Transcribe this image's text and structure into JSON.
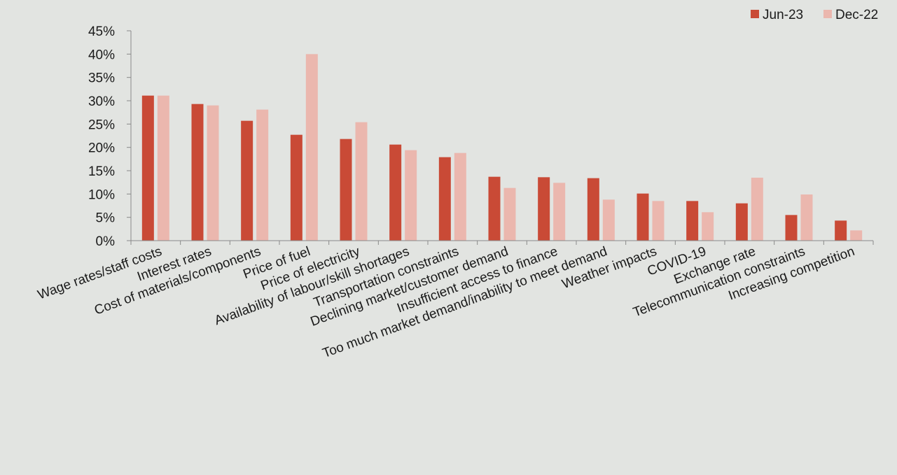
{
  "chart_data": {
    "type": "bar",
    "title": "",
    "xlabel": "",
    "ylabel": "",
    "ylim": [
      0,
      0.45
    ],
    "y_ticks": [
      "0%",
      "5%",
      "10%",
      "15%",
      "20%",
      "25%",
      "30%",
      "35%",
      "40%",
      "45%"
    ],
    "grid": false,
    "legend_position": "top-right",
    "categories": [
      "Wage rates/staff costs",
      "Interest rates",
      "Cost of materials/components",
      "Price of fuel",
      "Price of electricity",
      "Availability of labour/skill shortages",
      "Transportation constraints",
      "Declining market/customer demand",
      "Insufficient access to finance",
      "Too much market demand/inability to meet demand",
      "Weather impacts",
      "COVID-19",
      "Exchange rate",
      "Telecommunication constraints",
      "Increasing competition"
    ],
    "series": [
      {
        "name": "Jun-23",
        "color": "#c94a36",
        "values": [
          0.311,
          0.293,
          0.257,
          0.227,
          0.218,
          0.206,
          0.179,
          0.137,
          0.136,
          0.134,
          0.101,
          0.085,
          0.08,
          0.055,
          0.043
        ]
      },
      {
        "name": "Dec-22",
        "color": "#ebb7ae",
        "values": [
          0.311,
          0.29,
          0.281,
          0.4,
          0.254,
          0.194,
          0.188,
          0.113,
          0.124,
          0.088,
          0.085,
          0.061,
          0.135,
          0.099,
          0.022
        ]
      }
    ]
  }
}
